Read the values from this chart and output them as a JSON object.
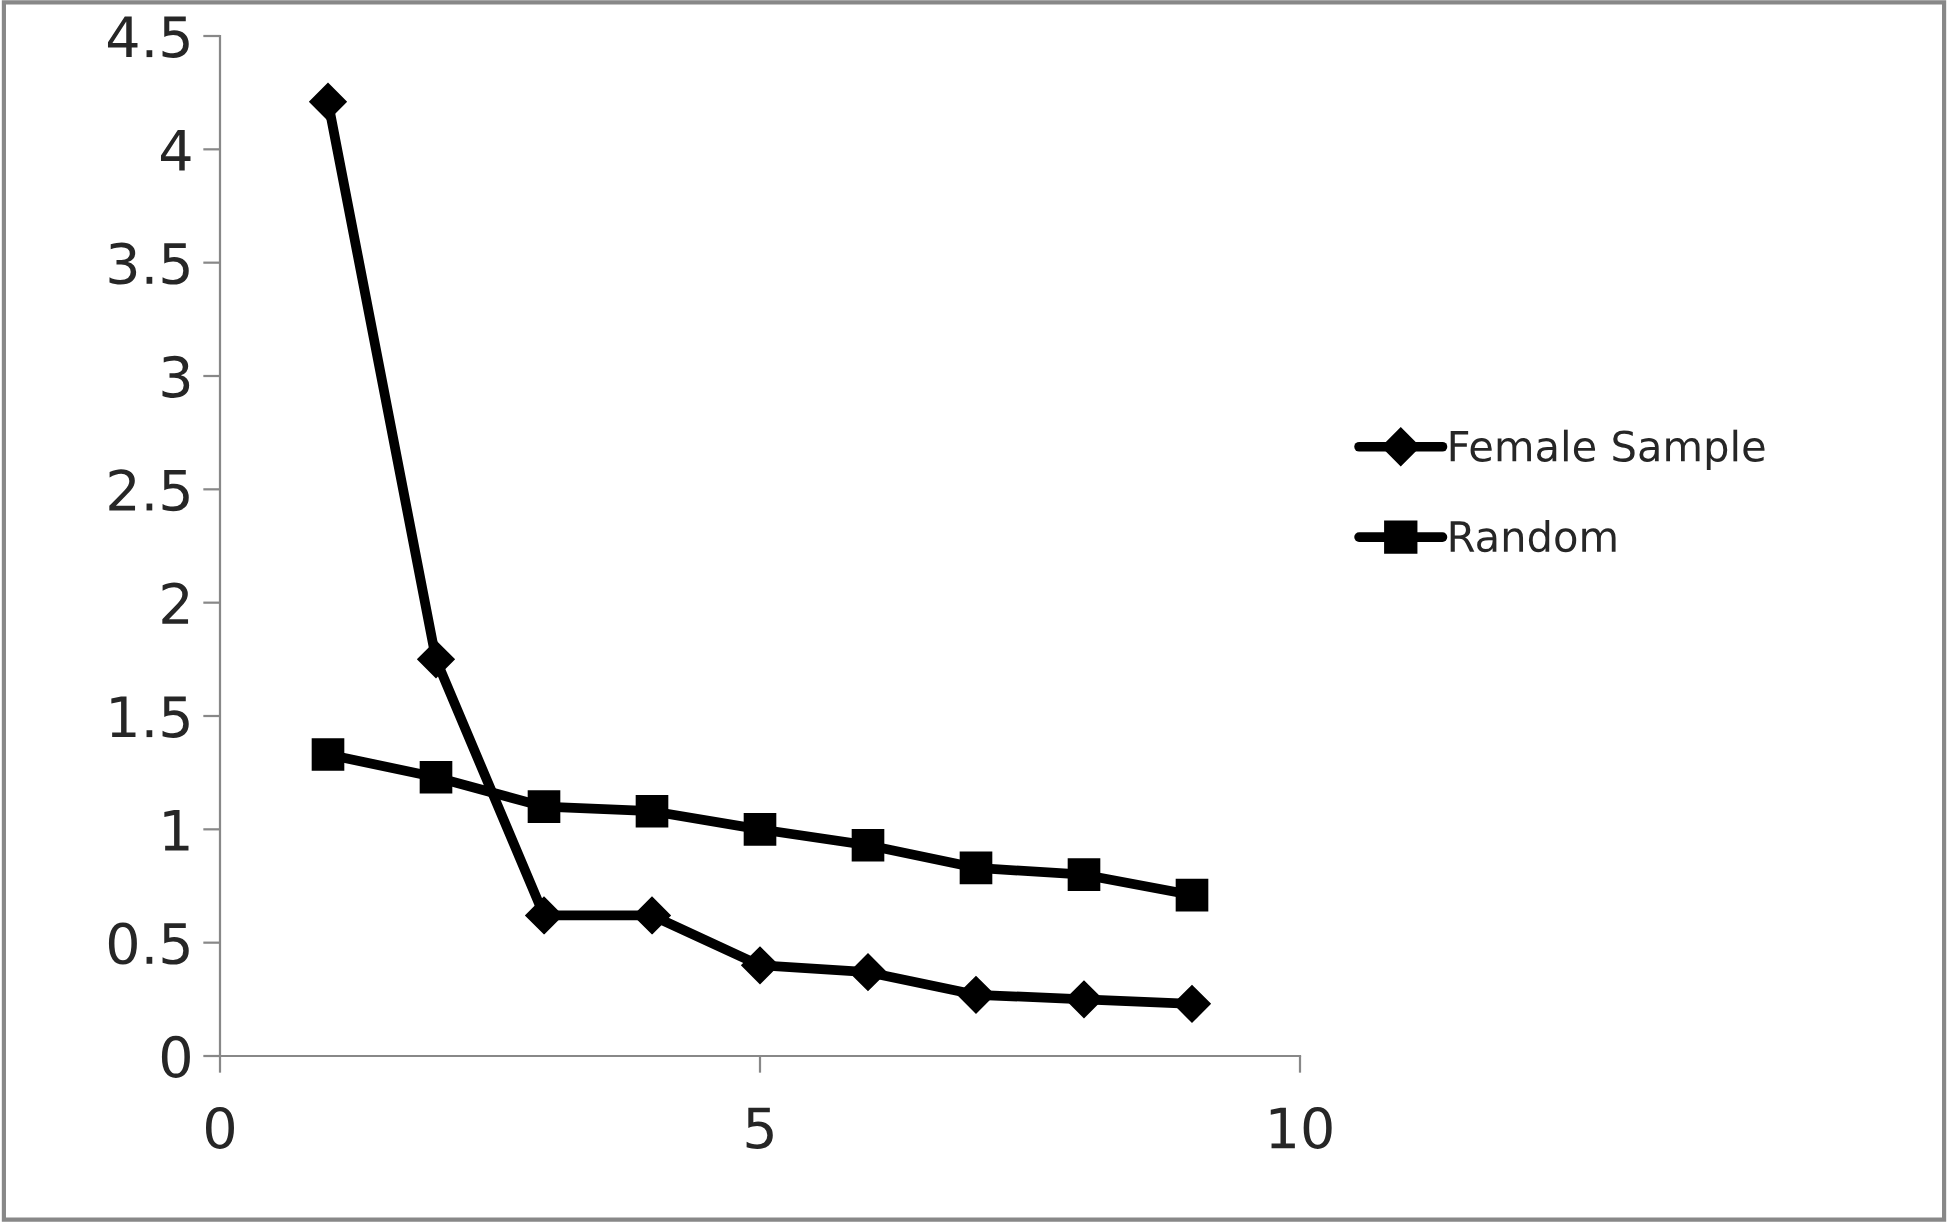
{
  "chart_data": {
    "type": "line",
    "x": [
      1,
      2,
      3,
      4,
      5,
      6,
      7,
      8,
      9
    ],
    "series": [
      {
        "name": "Female Sample",
        "color": "#000000",
        "marker": "diamond",
        "values": [
          4.21,
          1.75,
          0.62,
          0.62,
          0.4,
          0.37,
          0.27,
          0.25,
          0.23
        ]
      },
      {
        "name": "Random",
        "color": "#000000",
        "marker": "square",
        "values": [
          1.33,
          1.23,
          1.1,
          1.08,
          1.0,
          0.93,
          0.83,
          0.8,
          0.71
        ]
      }
    ],
    "xlim": [
      0,
      10
    ],
    "xticks": [
      0,
      5,
      10
    ],
    "ylim": [
      0,
      4.5
    ],
    "yticks": [
      0,
      {
        "value": 0.5,
        "label": "0.5"
      },
      1,
      {
        "value": 1.5,
        "label": "1.5"
      },
      2,
      {
        "value": 2.5,
        "label": "2.5"
      },
      3,
      {
        "value": 3.5,
        "label": "3.5"
      },
      4,
      {
        "value": 4.5,
        "label": "4.5"
      }
    ],
    "grid": false,
    "legend": "right",
    "line_style": "solid"
  }
}
